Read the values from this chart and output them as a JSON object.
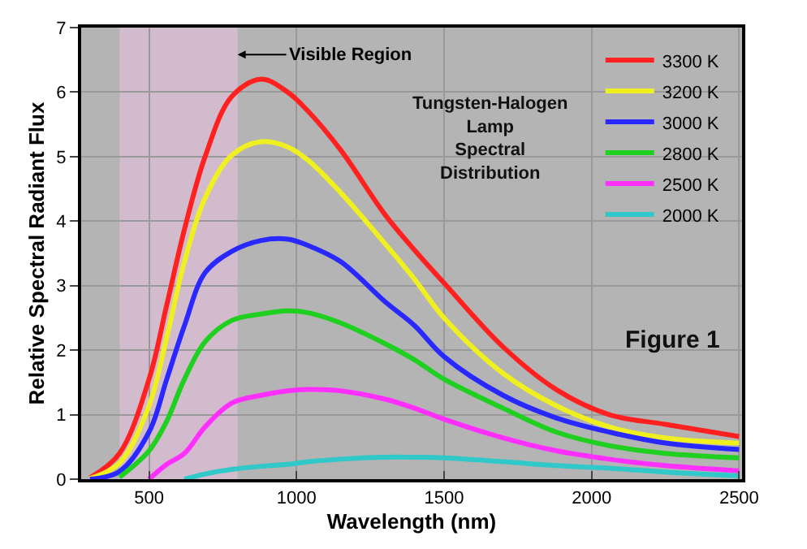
{
  "chart_data": {
    "type": "line",
    "xlabel": "Wavelength (nm)",
    "ylabel": "Relative Spectral Radiant Flux",
    "x": [
      300,
      400,
      500,
      560,
      620,
      690,
      780,
      880,
      970,
      1040,
      1150,
      1300,
      1400,
      1500,
      1700,
      1880,
      2060,
      2250,
      2500
    ],
    "series": [
      {
        "name": "3300 K",
        "color": "#ff2020",
        "values": [
          0.02,
          0.4,
          1.55,
          2.7,
          3.87,
          5.0,
          5.93,
          6.2,
          6.0,
          5.7,
          5.1,
          4.1,
          3.55,
          3.04,
          2.05,
          1.39,
          1.0,
          0.85,
          0.66
        ]
      },
      {
        "name": "3200 K",
        "color": "#f0f020",
        "values": [
          0.01,
          0.25,
          1.14,
          2.2,
          3.37,
          4.36,
          5.02,
          5.23,
          5.15,
          4.94,
          4.44,
          3.65,
          3.1,
          2.5,
          1.64,
          1.14,
          0.81,
          0.64,
          0.56
        ]
      },
      {
        "name": "3000 K",
        "color": "#2828ff",
        "values": [
          0.0,
          0.12,
          0.73,
          1.55,
          2.38,
          3.2,
          3.53,
          3.7,
          3.72,
          3.62,
          3.37,
          2.75,
          2.38,
          1.9,
          1.3,
          0.95,
          0.73,
          0.56,
          0.46
        ]
      },
      {
        "name": "2800 K",
        "color": "#20d020",
        "values": [
          null,
          0.03,
          0.44,
          0.9,
          1.55,
          2.13,
          2.46,
          2.56,
          2.61,
          2.58,
          2.42,
          2.1,
          1.85,
          1.55,
          1.1,
          0.73,
          0.52,
          0.4,
          0.33
        ]
      },
      {
        "name": "2500 K",
        "color": "#ff30ff",
        "values": [
          null,
          null,
          0.0,
          0.23,
          0.4,
          0.81,
          1.18,
          1.3,
          1.37,
          1.39,
          1.37,
          1.24,
          1.1,
          0.93,
          0.64,
          0.44,
          0.31,
          0.21,
          0.13
        ]
      },
      {
        "name": "2000 K",
        "color": "#30c8c8",
        "values": [
          null,
          null,
          null,
          null,
          0.0,
          0.08,
          0.15,
          0.2,
          0.23,
          0.27,
          0.31,
          0.34,
          0.34,
          0.33,
          0.27,
          0.21,
          0.17,
          0.11,
          0.05
        ]
      }
    ],
    "xlim": [
      270,
      2510
    ],
    "ylim": [
      0,
      7
    ],
    "xticks": [
      500,
      1000,
      1500,
      2000,
      2500
    ],
    "yticks": [
      0,
      1,
      2,
      3,
      4,
      5,
      6,
      7
    ],
    "bands": [
      {
        "axis": "x",
        "from": 400,
        "to": 800,
        "label": "Visible Region",
        "color": "#e8c0e0"
      }
    ],
    "annotations": [
      "Tungsten-Halogen\nLamp\nSpectral\nDistribution",
      "Figure 1"
    ],
    "grid": true,
    "legend": "top right",
    "marker": "none",
    "line_style": "solid"
  }
}
